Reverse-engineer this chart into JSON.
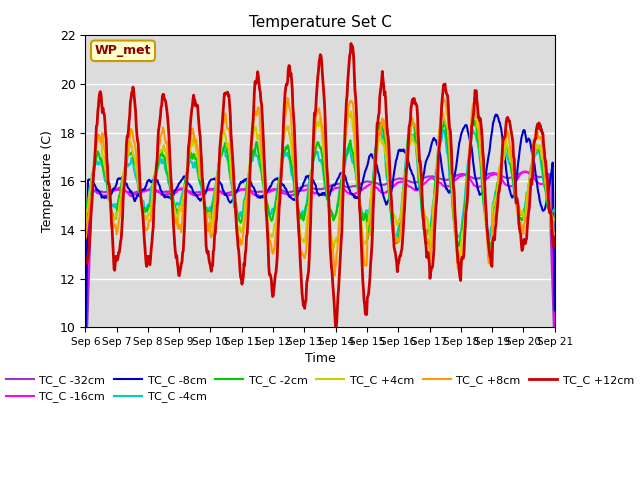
{
  "title": "Temperature Set C",
  "xlabel": "Time",
  "ylabel": "Temperature (C)",
  "ylim": [
    10,
    22
  ],
  "xlim": [
    0,
    15
  ],
  "annotation": "WP_met",
  "background_color": "#dcdcdc",
  "x_tick_labels": [
    "Sep 6",
    "Sep 7",
    "Sep 8",
    "Sep 9",
    "Sep 10",
    "Sep 11",
    "Sep 12",
    "Sep 13",
    "Sep 14",
    "Sep 15",
    "Sep 16",
    "Sep 17",
    "Sep 18",
    "Sep 19",
    "Sep 20",
    "Sep 21"
  ],
  "series_order": [
    "TC_C -32cm",
    "TC_C -16cm",
    "TC_C -8cm",
    "TC_C -4cm",
    "TC_C -2cm",
    "TC_C +4cm",
    "TC_C +8cm",
    "TC_C +12cm"
  ],
  "series": {
    "TC_C -32cm": {
      "color": "#9933cc",
      "lw": 1.5
    },
    "TC_C -16cm": {
      "color": "#ff00ff",
      "lw": 1.5
    },
    "TC_C -8cm": {
      "color": "#0000cc",
      "lw": 1.5
    },
    "TC_C -4cm": {
      "color": "#00cccc",
      "lw": 1.5
    },
    "TC_C -2cm": {
      "color": "#00cc00",
      "lw": 1.5
    },
    "TC_C +4cm": {
      "color": "#cccc00",
      "lw": 1.5
    },
    "TC_C +8cm": {
      "color": "#ff9900",
      "lw": 1.5
    },
    "TC_C +12cm": {
      "color": "#cc0000",
      "lw": 2.0
    }
  },
  "legend_ncol": 6,
  "legend_row2": [
    "TC_C +8cm",
    "TC_C +12cm"
  ]
}
